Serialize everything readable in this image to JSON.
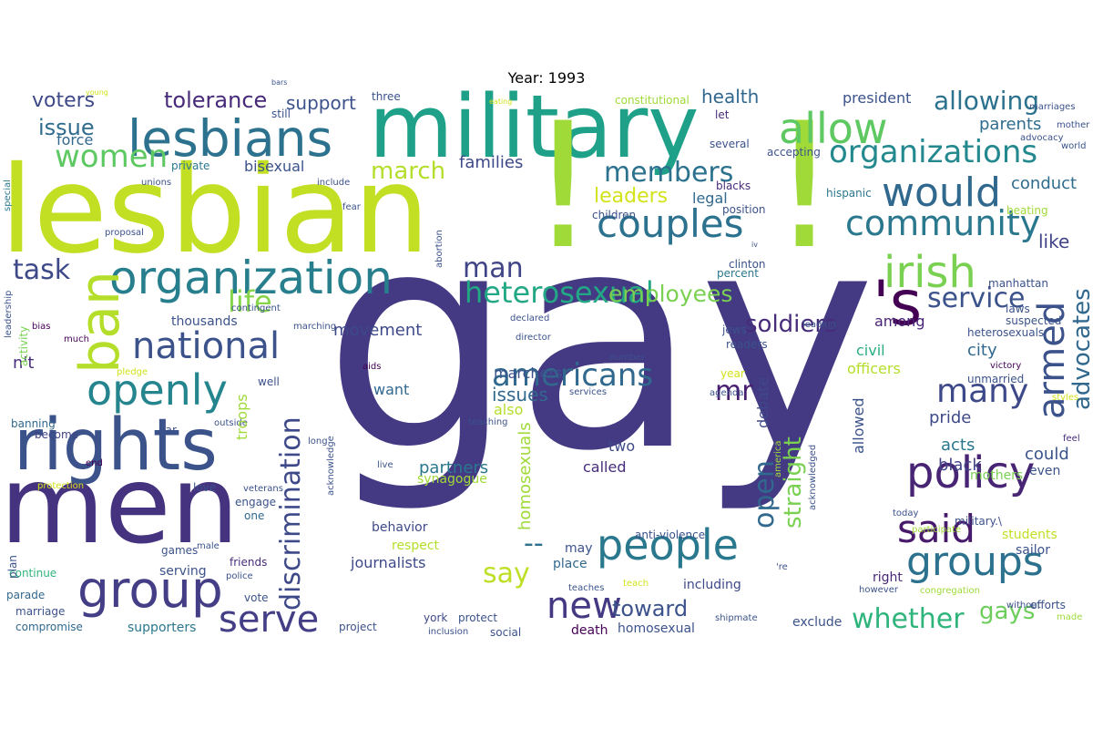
{
  "title": "Year: 1993",
  "words": [
    {
      "t": "gay",
      "c": "#443983"
    },
    {
      "t": "lesbian",
      "c": "#c2df23"
    },
    {
      "t": "military",
      "c": "#1fa088"
    },
    {
      "t": "men",
      "c": "#46337f"
    },
    {
      "t": "!",
      "c": "#a0da39"
    },
    {
      "t": "!",
      "c": "#a0da39"
    },
    {
      "t": "lesbians",
      "c": "#2c728e"
    },
    {
      "t": "rights",
      "c": "#3b528b"
    },
    {
      "t": "organization",
      "c": "#277f8e"
    },
    {
      "t": "group",
      "c": "#433e85"
    },
    {
      "t": "people",
      "c": "#2a788e"
    },
    {
      "t": "allow",
      "c": "#5ec962"
    },
    {
      "t": "would",
      "c": "#31688e"
    },
    {
      "t": "policy",
      "c": "#482475"
    },
    {
      "t": "couples",
      "c": "#2c728e"
    },
    {
      "t": "community",
      "c": "#2a788e"
    },
    {
      "t": "irish",
      "c": "#7ad151"
    },
    {
      "t": "groups",
      "c": "#2c728e"
    },
    {
      "t": "said",
      "c": "#481a6c"
    },
    {
      "t": "serve",
      "c": "#433e85"
    },
    {
      "t": "new",
      "c": "#443983"
    },
    {
      "t": "openly",
      "c": "#25858e"
    },
    {
      "t": "national",
      "c": "#3b528b"
    },
    {
      "t": "'s",
      "c": "#440154"
    },
    {
      "t": "organizations",
      "c": "#23898e"
    },
    {
      "t": "heterosexual",
      "c": "#22a884"
    },
    {
      "t": "women",
      "c": "#5ec962"
    },
    {
      "t": "many",
      "c": "#3e4989"
    },
    {
      "t": "americans",
      "c": "#31688e"
    },
    {
      "t": "whether",
      "c": "#2fb47c"
    },
    {
      "t": "members",
      "c": "#2c728e"
    },
    {
      "t": "allowing",
      "c": "#2c728e"
    },
    {
      "t": "man",
      "c": "#414487"
    },
    {
      "t": "service",
      "c": "#3b528b"
    },
    {
      "t": "soldiers",
      "c": "#472c7a"
    },
    {
      "t": "employees",
      "c": "#7ad151"
    },
    {
      "t": "life",
      "c": "#86d549"
    },
    {
      "t": "task",
      "c": "#3e4989"
    },
    {
      "t": "mr",
      "c": "#481f70"
    },
    {
      "t": "toward",
      "c": "#3b528b"
    },
    {
      "t": "gays",
      "c": "#6ccd5a"
    },
    {
      "t": "say",
      "c": "#bddf26"
    },
    {
      "t": "--",
      "c": "#2c728e"
    },
    {
      "t": "march",
      "c": "#b5de2b"
    },
    {
      "t": "issue",
      "c": "#2f6c8e"
    },
    {
      "t": "voters",
      "c": "#3e4989"
    },
    {
      "t": "tolerance",
      "c": "#472a7a"
    },
    {
      "t": "support",
      "c": "#3b528b"
    },
    {
      "t": "health",
      "c": "#31688e"
    },
    {
      "t": "president",
      "c": "#3b528b"
    },
    {
      "t": "leaders",
      "c": "#d2e21b"
    },
    {
      "t": "conduct",
      "c": "#2f6c8e"
    },
    {
      "t": "like",
      "c": "#414487"
    },
    {
      "t": "parents",
      "c": "#2f6c8e"
    },
    {
      "t": "families",
      "c": "#3e4989"
    },
    {
      "t": "bisexual",
      "c": "#3b528b"
    },
    {
      "t": "force",
      "c": "#31688e"
    },
    {
      "t": "movement",
      "c": "#3e4989"
    },
    {
      "t": "among",
      "c": "#482475"
    },
    {
      "t": "city",
      "c": "#31688e"
    },
    {
      "t": "legal",
      "c": "#31688e"
    },
    {
      "t": "issues",
      "c": "#31688e"
    },
    {
      "t": "n't",
      "c": "#472c7a"
    },
    {
      "t": "partners",
      "c": "#2a788e"
    },
    {
      "t": "pride",
      "c": "#3e4989"
    },
    {
      "t": "acts",
      "c": "#2a788e"
    },
    {
      "t": "could",
      "c": "#3b528b"
    },
    {
      "t": "black",
      "c": "#414487"
    },
    {
      "t": "marchers",
      "c": "#3b528b"
    },
    {
      "t": "civil",
      "c": "#29af7f"
    },
    {
      "t": "officers",
      "c": "#b5de2b"
    },
    {
      "t": "want",
      "c": "#31688e"
    },
    {
      "t": "also",
      "c": "#b5de2b"
    },
    {
      "t": "two",
      "c": "#3e4989"
    },
    {
      "t": "called",
      "c": "#472c7a"
    },
    {
      "t": "synagogue",
      "c": "#a0da39"
    },
    {
      "t": "mothers",
      "c": "#7ad151"
    },
    {
      "t": "even",
      "c": "#3b528b"
    },
    {
      "t": "students",
      "c": "#c2df23"
    },
    {
      "t": "sailor",
      "c": "#3b528b"
    },
    {
      "t": "right",
      "c": "#482878"
    },
    {
      "t": "including",
      "c": "#3e4989"
    },
    {
      "t": "journalists",
      "c": "#3e4989"
    },
    {
      "t": "behavior",
      "c": "#3e4989"
    },
    {
      "t": "may",
      "c": "#3b528b"
    },
    {
      "t": "place",
      "c": "#31688e"
    },
    {
      "t": "respect",
      "c": "#b5de2b"
    },
    {
      "t": "exclude",
      "c": "#3b528b"
    },
    {
      "t": "homosexual",
      "c": "#3b528b"
    },
    {
      "t": "death",
      "c": "#440154"
    },
    {
      "t": "york",
      "c": "#3e4989"
    },
    {
      "t": "protect",
      "c": "#3b528b"
    },
    {
      "t": "social",
      "c": "#3b528b"
    },
    {
      "t": "project",
      "c": "#3b528b"
    },
    {
      "t": "supporters",
      "c": "#2a788e"
    },
    {
      "t": "compromise",
      "c": "#31688e"
    },
    {
      "t": "marriage",
      "c": "#3b528b"
    },
    {
      "t": "parade",
      "c": "#31688e"
    },
    {
      "t": "vote",
      "c": "#3b528b"
    },
    {
      "t": "serving",
      "c": "#3b528b"
    },
    {
      "t": "continue",
      "c": "#2fb47c"
    },
    {
      "t": "friends",
      "c": "#472c7a"
    },
    {
      "t": "love",
      "c": "#3b528b"
    },
    {
      "t": "engage",
      "c": "#3b528b"
    },
    {
      "t": "one",
      "c": "#31688e"
    },
    {
      "t": "thousands",
      "c": "#3b528b"
    },
    {
      "t": "banning",
      "c": "#31688e"
    },
    {
      "t": "become",
      "c": "#414487"
    },
    {
      "t": "private",
      "c": "#2a788e"
    },
    {
      "t": "three",
      "c": "#3b528b"
    },
    {
      "t": "still",
      "c": "#3b528b"
    },
    {
      "t": "constitutional",
      "c": "#a0da39"
    },
    {
      "t": "let",
      "c": "#472c7a"
    },
    {
      "t": "several",
      "c": "#3b528b"
    },
    {
      "t": "blacks",
      "c": "#472c7a"
    },
    {
      "t": "accepting",
      "c": "#3b528b"
    },
    {
      "t": "position",
      "c": "#3b528b"
    },
    {
      "t": "children",
      "c": "#3b528b"
    },
    {
      "t": "clinton",
      "c": "#3b528b"
    },
    {
      "t": "percent",
      "c": "#2a788e"
    },
    {
      "t": "laws",
      "c": "#3b528b"
    },
    {
      "t": "suspected",
      "c": "#3b528b"
    },
    {
      "t": "heterosexuals",
      "c": "#3b528b"
    },
    {
      "t": "manhattan",
      "c": "#3b528b"
    },
    {
      "t": "hispanic",
      "c": "#2a788e"
    },
    {
      "t": "beating",
      "c": "#a0da39"
    },
    {
      "t": "mother",
      "c": "#3b528b"
    },
    {
      "t": "advocacy",
      "c": "#3b528b"
    },
    {
      "t": "world",
      "c": "#3b528b"
    },
    {
      "t": "marriages",
      "c": "#3b528b"
    },
    {
      "t": "jews",
      "c": "#3b528b"
    },
    {
      "t": "readers",
      "c": "#3b528b"
    },
    {
      "t": "victory",
      "c": "#440154"
    },
    {
      "t": "leading",
      "c": "#3b528b"
    },
    {
      "t": "declared",
      "c": "#3b528b"
    },
    {
      "t": "director",
      "c": "#3b528b"
    },
    {
      "t": "number",
      "c": "#3b528b"
    },
    {
      "t": "aids",
      "c": "#440154"
    },
    {
      "t": "services",
      "c": "#3b528b"
    },
    {
      "t": "agenda",
      "c": "#3b528b"
    },
    {
      "t": "teaching",
      "c": "#3b528b"
    },
    {
      "t": "year",
      "c": "#d2e21b"
    },
    {
      "t": "unmarried",
      "c": "#3b528b"
    },
    {
      "t": "feel",
      "c": "#472c7a"
    },
    {
      "t": "styles",
      "c": "#d2e21b"
    },
    {
      "t": "military.\\",
      "c": "#3b528b"
    },
    {
      "t": "today",
      "c": "#3b528b"
    },
    {
      "t": "participate",
      "c": "#a0da39"
    },
    {
      "t": "however",
      "c": "#3b528b"
    },
    {
      "t": "congregation",
      "c": "#a0da39"
    },
    {
      "t": "efforts",
      "c": "#3b528b"
    },
    {
      "t": "made",
      "c": "#a0da39"
    },
    {
      "t": "without",
      "c": "#3b528b"
    },
    {
      "t": "shipmate",
      "c": "#3b528b"
    },
    {
      "t": "teach",
      "c": "#d2e21b"
    },
    {
      "t": "teaches",
      "c": "#3b528b"
    },
    {
      "t": "anti-violence",
      "c": "#3b528b"
    },
    {
      "t": "'re",
      "c": "#3b528b"
    },
    {
      "t": "well",
      "c": "#3b528b"
    },
    {
      "t": "outside",
      "c": "#3b528b"
    },
    {
      "t": "bar",
      "c": "#3b528b"
    },
    {
      "t": "pledge",
      "c": "#d2e21b"
    },
    {
      "t": "much",
      "c": "#440154"
    },
    {
      "t": "bias",
      "c": "#440154"
    },
    {
      "t": "marching",
      "c": "#3b528b"
    },
    {
      "t": "contingent",
      "c": "#3b528b"
    },
    {
      "t": "proposal",
      "c": "#3b528b"
    },
    {
      "t": "fear",
      "c": "#3b528b"
    },
    {
      "t": "include",
      "c": "#3b528b"
    },
    {
      "t": "unions",
      "c": "#3b528b"
    },
    {
      "t": "long",
      "c": "#3b528b"
    },
    {
      "t": "end",
      "c": "#440154"
    },
    {
      "t": "protection",
      "c": "#d2e21b"
    },
    {
      "t": "veterans",
      "c": "#3b528b"
    },
    {
      "t": "live",
      "c": "#3b528b"
    },
    {
      "t": "inclusion",
      "c": "#3b528b"
    },
    {
      "t": "games",
      "c": "#3b528b"
    },
    {
      "t": "male",
      "c": "#3b528b"
    },
    {
      "t": "police",
      "c": "#3b528b"
    },
    {
      "t": "plan",
      "c": "#3b528b"
    },
    {
      "t": "young",
      "c": "#d2e21b"
    },
    {
      "t": "bars",
      "c": "#3b528b"
    },
    {
      "t": "eating",
      "c": "#d2e21b"
    },
    {
      "t": "iv",
      "c": "#3b528b"
    },
    {
      "t": "ban",
      "c": "#b5de2b"
    },
    {
      "t": "discrimination",
      "c": "#3e4989"
    },
    {
      "t": "open",
      "c": "#31688e"
    },
    {
      "t": "straight",
      "c": "#7ad151"
    },
    {
      "t": "armed",
      "c": "#3b528b"
    },
    {
      "t": "advocates",
      "c": "#31688e"
    },
    {
      "t": "debate",
      "c": "#3e4989"
    },
    {
      "t": "homosexuals",
      "c": "#a0da39"
    },
    {
      "t": "allowed",
      "c": "#3b528b"
    },
    {
      "t": "troops",
      "c": "#a0da39"
    },
    {
      "t": "special",
      "c": "#2a788e"
    },
    {
      "t": "leadership",
      "c": "#3b528b"
    },
    {
      "t": "activity",
      "c": "#7ad151"
    },
    {
      "t": "abortion",
      "c": "#3b528b"
    },
    {
      "t": "america",
      "c": "#a0da39"
    },
    {
      "t": "acknowledged",
      "c": "#3b528b"
    },
    {
      "t": "acknowledge",
      "c": "#3b528b"
    }
  ]
}
